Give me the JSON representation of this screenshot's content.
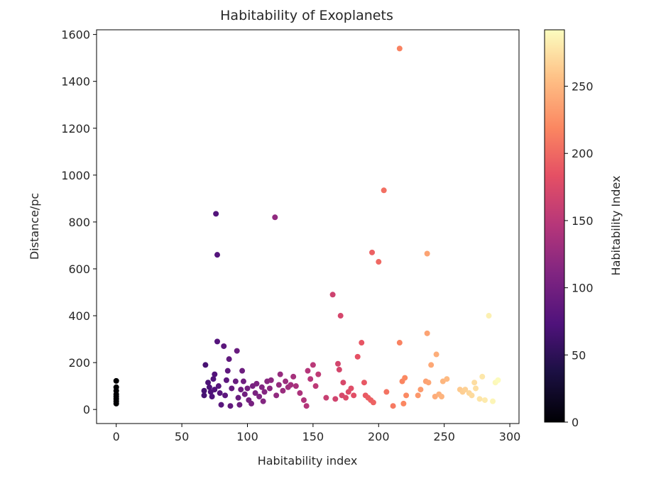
{
  "chart_data": {
    "type": "scatter",
    "title": "Habitability of Exoplanets",
    "xlabel": "Habitability index",
    "ylabel": "Distance/pc",
    "colorbar_label": "Habitability Index",
    "colormap": "magma",
    "xlim": [
      -15,
      307
    ],
    "ylim": [
      -60,
      1620
    ],
    "clim": [
      0,
      292
    ],
    "xticks": [
      0,
      50,
      100,
      150,
      200,
      250,
      300
    ],
    "yticks": [
      0,
      200,
      400,
      600,
      800,
      1000,
      1200,
      1400,
      1600
    ],
    "cticks": [
      0,
      50,
      100,
      150,
      200,
      250
    ],
    "grid": false,
    "points": [
      {
        "x": 0,
        "y": 122
      },
      {
        "x": 0,
        "y": 95
      },
      {
        "x": 0,
        "y": 80
      },
      {
        "x": 0,
        "y": 65
      },
      {
        "x": 0,
        "y": 55
      },
      {
        "x": 0,
        "y": 45
      },
      {
        "x": 0,
        "y": 35
      },
      {
        "x": 0,
        "y": 25
      },
      {
        "x": 67,
        "y": 80
      },
      {
        "x": 67,
        "y": 60
      },
      {
        "x": 68,
        "y": 190
      },
      {
        "x": 70,
        "y": 115
      },
      {
        "x": 71,
        "y": 95
      },
      {
        "x": 72,
        "y": 75
      },
      {
        "x": 73,
        "y": 55
      },
      {
        "x": 74,
        "y": 130
      },
      {
        "x": 75,
        "y": 150
      },
      {
        "x": 75,
        "y": 85
      },
      {
        "x": 76,
        "y": 835
      },
      {
        "x": 77,
        "y": 660
      },
      {
        "x": 77,
        "y": 290
      },
      {
        "x": 78,
        "y": 100
      },
      {
        "x": 79,
        "y": 70
      },
      {
        "x": 80,
        "y": 20
      },
      {
        "x": 82,
        "y": 270
      },
      {
        "x": 83,
        "y": 60
      },
      {
        "x": 84,
        "y": 125
      },
      {
        "x": 85,
        "y": 165
      },
      {
        "x": 86,
        "y": 215
      },
      {
        "x": 87,
        "y": 15
      },
      {
        "x": 88,
        "y": 90
      },
      {
        "x": 91,
        "y": 120
      },
      {
        "x": 92,
        "y": 250
      },
      {
        "x": 93,
        "y": 50
      },
      {
        "x": 94,
        "y": 20
      },
      {
        "x": 95,
        "y": 85
      },
      {
        "x": 96,
        "y": 165
      },
      {
        "x": 97,
        "y": 120
      },
      {
        "x": 98,
        "y": 65
      },
      {
        "x": 100,
        "y": 90
      },
      {
        "x": 101,
        "y": 40
      },
      {
        "x": 103,
        "y": 25
      },
      {
        "x": 104,
        "y": 100
      },
      {
        "x": 106,
        "y": 70
      },
      {
        "x": 107,
        "y": 110
      },
      {
        "x": 109,
        "y": 55
      },
      {
        "x": 111,
        "y": 95
      },
      {
        "x": 112,
        "y": 35
      },
      {
        "x": 113,
        "y": 75
      },
      {
        "x": 115,
        "y": 120
      },
      {
        "x": 117,
        "y": 90
      },
      {
        "x": 118,
        "y": 125
      },
      {
        "x": 121,
        "y": 820
      },
      {
        "x": 122,
        "y": 60
      },
      {
        "x": 124,
        "y": 105
      },
      {
        "x": 125,
        "y": 150
      },
      {
        "x": 127,
        "y": 80
      },
      {
        "x": 129,
        "y": 120
      },
      {
        "x": 131,
        "y": 95
      },
      {
        "x": 133,
        "y": 105
      },
      {
        "x": 135,
        "y": 140
      },
      {
        "x": 137,
        "y": 100
      },
      {
        "x": 140,
        "y": 70
      },
      {
        "x": 143,
        "y": 40
      },
      {
        "x": 145,
        "y": 15
      },
      {
        "x": 146,
        "y": 165
      },
      {
        "x": 148,
        "y": 130
      },
      {
        "x": 150,
        "y": 190
      },
      {
        "x": 152,
        "y": 100
      },
      {
        "x": 154,
        "y": 150
      },
      {
        "x": 160,
        "y": 50
      },
      {
        "x": 165,
        "y": 490
      },
      {
        "x": 167,
        "y": 45
      },
      {
        "x": 169,
        "y": 195
      },
      {
        "x": 170,
        "y": 170
      },
      {
        "x": 171,
        "y": 400
      },
      {
        "x": 172,
        "y": 60
      },
      {
        "x": 173,
        "y": 115
      },
      {
        "x": 175,
        "y": 50
      },
      {
        "x": 177,
        "y": 75
      },
      {
        "x": 179,
        "y": 90
      },
      {
        "x": 181,
        "y": 60
      },
      {
        "x": 184,
        "y": 225
      },
      {
        "x": 187,
        "y": 285
      },
      {
        "x": 189,
        "y": 115
      },
      {
        "x": 190,
        "y": 60
      },
      {
        "x": 192,
        "y": 50
      },
      {
        "x": 194,
        "y": 40
      },
      {
        "x": 195,
        "y": 670
      },
      {
        "x": 196,
        "y": 30
      },
      {
        "x": 200,
        "y": 630
      },
      {
        "x": 204,
        "y": 935
      },
      {
        "x": 206,
        "y": 75
      },
      {
        "x": 211,
        "y": 15
      },
      {
        "x": 216,
        "y": 1540
      },
      {
        "x": 216,
        "y": 285
      },
      {
        "x": 218,
        "y": 120
      },
      {
        "x": 220,
        "y": 135
      },
      {
        "x": 221,
        "y": 60
      },
      {
        "x": 219,
        "y": 25
      },
      {
        "x": 230,
        "y": 60
      },
      {
        "x": 232,
        "y": 85
      },
      {
        "x": 236,
        "y": 120
      },
      {
        "x": 237,
        "y": 665
      },
      {
        "x": 237,
        "y": 325
      },
      {
        "x": 238,
        "y": 115
      },
      {
        "x": 240,
        "y": 190
      },
      {
        "x": 243,
        "y": 55
      },
      {
        "x": 244,
        "y": 235
      },
      {
        "x": 246,
        "y": 65
      },
      {
        "x": 248,
        "y": 55
      },
      {
        "x": 249,
        "y": 120
      },
      {
        "x": 252,
        "y": 130
      },
      {
        "x": 262,
        "y": 85
      },
      {
        "x": 264,
        "y": 75
      },
      {
        "x": 266,
        "y": 85
      },
      {
        "x": 269,
        "y": 70
      },
      {
        "x": 271,
        "y": 60
      },
      {
        "x": 273,
        "y": 115
      },
      {
        "x": 274,
        "y": 90
      },
      {
        "x": 277,
        "y": 45
      },
      {
        "x": 279,
        "y": 140
      },
      {
        "x": 281,
        "y": 40
      },
      {
        "x": 284,
        "y": 400
      },
      {
        "x": 287,
        "y": 35
      },
      {
        "x": 289,
        "y": 115
      },
      {
        "x": 291,
        "y": 125
      }
    ]
  }
}
